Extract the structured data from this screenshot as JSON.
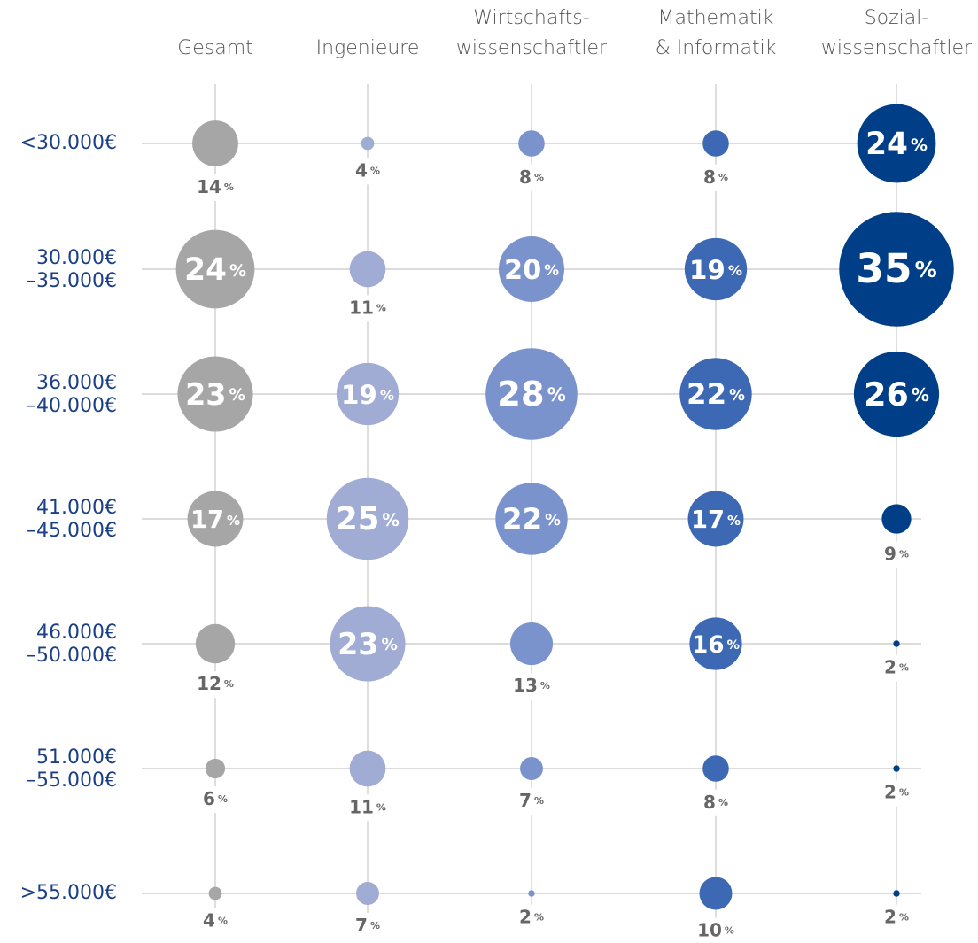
{
  "chart_data": {
    "type": "bubble-grid",
    "unit": "%",
    "rows": [
      [
        "<30.000€"
      ],
      [
        "30.000€",
        "–35.000€"
      ],
      [
        "36.000€",
        "–40.000€"
      ],
      [
        "41.000€",
        "–45.000€"
      ],
      [
        "46.000€",
        "–50.000€"
      ],
      [
        "51.000€",
        "–55.000€"
      ],
      [
        ">55.000€"
      ]
    ],
    "series": [
      {
        "name": [
          "Gesamt"
        ],
        "color": "#a6a6a6",
        "values": [
          14,
          24,
          23,
          17,
          12,
          6,
          4
        ]
      },
      {
        "name": [
          "Ingenieure"
        ],
        "color": "#a0acd3",
        "values": [
          4,
          11,
          19,
          25,
          23,
          11,
          7
        ]
      },
      {
        "name": [
          "Wirtschafts-",
          "wissenschaftler"
        ],
        "color": "#7b93cc",
        "values": [
          8,
          20,
          28,
          22,
          13,
          7,
          2
        ]
      },
      {
        "name": [
          "Mathematik",
          "& Informatik"
        ],
        "color": "#3d68b3",
        "values": [
          8,
          19,
          22,
          17,
          16,
          8,
          10
        ]
      },
      {
        "name": [
          "Sozial-",
          "wissenschaftler"
        ],
        "color": "#003f87",
        "values": [
          24,
          35,
          26,
          9,
          2,
          2,
          2
        ]
      }
    ]
  }
}
